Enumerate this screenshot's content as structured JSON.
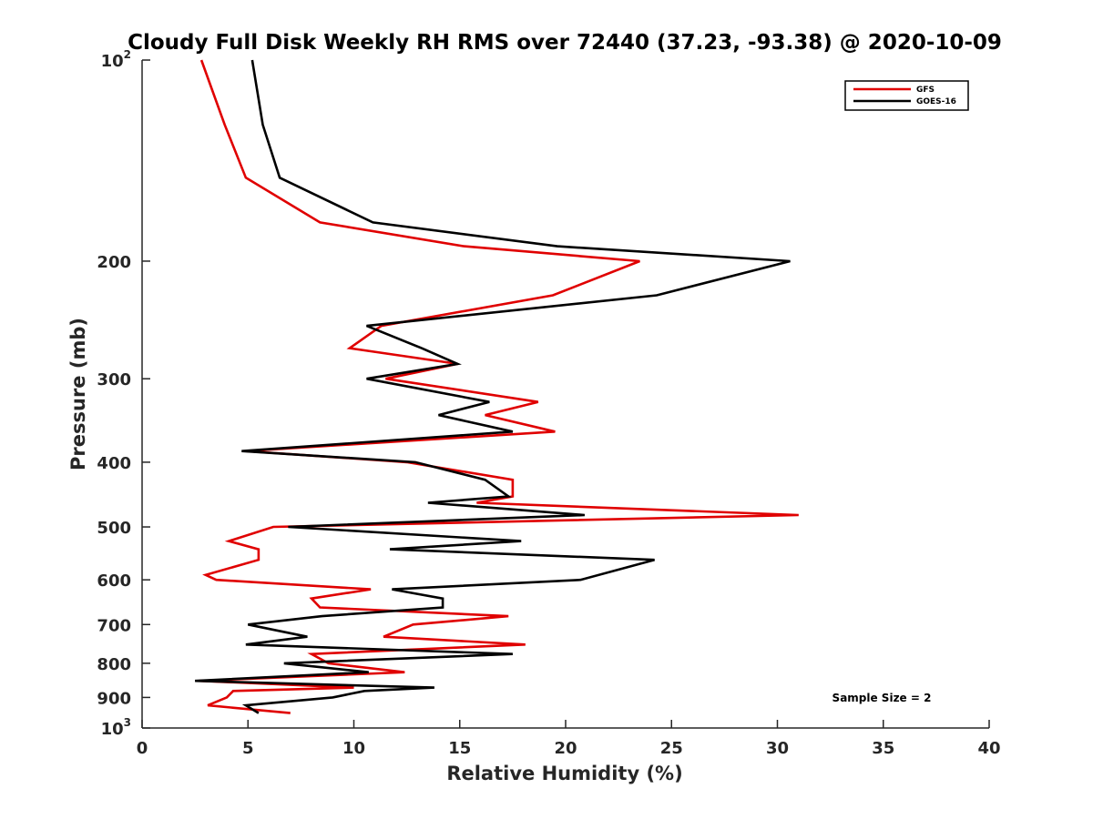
{
  "chart_data": {
    "type": "line",
    "title": "Cloudy Full Disk Weekly RH RMS over 72440 (37.23, -93.38) @ 2020-10-09",
    "xlabel": "Relative Humidity (%)",
    "ylabel": "Pressure (mb)",
    "xlim": [
      0,
      40
    ],
    "ylim": [
      100,
      1000
    ],
    "yscale": "log",
    "y_reversed": true,
    "x_ticks": [
      0,
      5,
      10,
      15,
      20,
      25,
      30,
      35,
      40
    ],
    "x_tick_labels": [
      "0",
      "5",
      "10",
      "15",
      "20",
      "25",
      "30",
      "35",
      "40"
    ],
    "y_ticks": [
      {
        "value": 100,
        "base": "10",
        "exp": "2"
      },
      {
        "value": 200,
        "label": "200"
      },
      {
        "value": 300,
        "label": "300"
      },
      {
        "value": 400,
        "label": "400"
      },
      {
        "value": 500,
        "label": "500"
      },
      {
        "value": 600,
        "label": "600"
      },
      {
        "value": 700,
        "label": "700"
      },
      {
        "value": 800,
        "label": "800"
      },
      {
        "value": 900,
        "label": "900"
      },
      {
        "value": 1000,
        "base": "10",
        "exp": "3"
      }
    ],
    "grid": false,
    "legend_position": "top-right",
    "annotation": "Sample Size = 2",
    "series": [
      {
        "name": "GFS",
        "color": "#e00000",
        "points": [
          [
            2.8,
            100
          ],
          [
            3.9,
            125
          ],
          [
            4.9,
            150
          ],
          [
            8.4,
            175
          ],
          [
            15.2,
            190
          ],
          [
            23.5,
            200
          ],
          [
            19.4,
            225
          ],
          [
            11.3,
            250
          ],
          [
            9.8,
            270
          ],
          [
            14.9,
            285
          ],
          [
            11.5,
            300
          ],
          [
            18.7,
            325
          ],
          [
            16.2,
            340
          ],
          [
            19.5,
            360
          ],
          [
            4.9,
            385
          ],
          [
            12.5,
            400
          ],
          [
            17.5,
            425
          ],
          [
            17.5,
            450
          ],
          [
            15.8,
            460
          ],
          [
            31,
            480
          ],
          [
            6.2,
            500
          ],
          [
            4.1,
            525
          ],
          [
            5.5,
            540
          ],
          [
            5.5,
            560
          ],
          [
            3.0,
            590
          ],
          [
            3.5,
            600
          ],
          [
            10.8,
            620
          ],
          [
            8.0,
            640
          ],
          [
            8.4,
            660
          ],
          [
            17.3,
            680
          ],
          [
            12.8,
            700
          ],
          [
            11.4,
            730
          ],
          [
            18.1,
            750
          ],
          [
            8.0,
            775
          ],
          [
            8.8,
            800
          ],
          [
            12.4,
            825
          ],
          [
            2.7,
            850
          ],
          [
            10.0,
            870
          ],
          [
            4.3,
            880
          ],
          [
            4.0,
            900
          ],
          [
            3.1,
            925
          ],
          [
            7.0,
            950
          ]
        ]
      },
      {
        "name": "GOES-16",
        "color": "#000000",
        "points": [
          [
            5.2,
            100
          ],
          [
            5.7,
            125
          ],
          [
            6.5,
            150
          ],
          [
            10.9,
            175
          ],
          [
            19.6,
            190
          ],
          [
            30.6,
            200
          ],
          [
            24.3,
            225
          ],
          [
            10.6,
            250
          ],
          [
            13.2,
            270
          ],
          [
            14.9,
            285
          ],
          [
            10.6,
            300
          ],
          [
            16.4,
            325
          ],
          [
            14.0,
            340
          ],
          [
            17.5,
            360
          ],
          [
            4.7,
            385
          ],
          [
            12.9,
            400
          ],
          [
            16.2,
            425
          ],
          [
            17.3,
            450
          ],
          [
            13.5,
            460
          ],
          [
            20.9,
            480
          ],
          [
            6.9,
            500
          ],
          [
            17.9,
            525
          ],
          [
            11.7,
            540
          ],
          [
            24.2,
            560
          ],
          [
            20.7,
            600
          ],
          [
            11.8,
            620
          ],
          [
            14.2,
            640
          ],
          [
            14.2,
            660
          ],
          [
            8.5,
            680
          ],
          [
            5.0,
            700
          ],
          [
            7.8,
            730
          ],
          [
            4.9,
            750
          ],
          [
            17.5,
            775
          ],
          [
            6.7,
            800
          ],
          [
            10.7,
            825
          ],
          [
            2.5,
            850
          ],
          [
            13.8,
            870
          ],
          [
            10.5,
            880
          ],
          [
            9.0,
            900
          ],
          [
            4.9,
            925
          ],
          [
            5.5,
            950
          ]
        ]
      }
    ]
  }
}
